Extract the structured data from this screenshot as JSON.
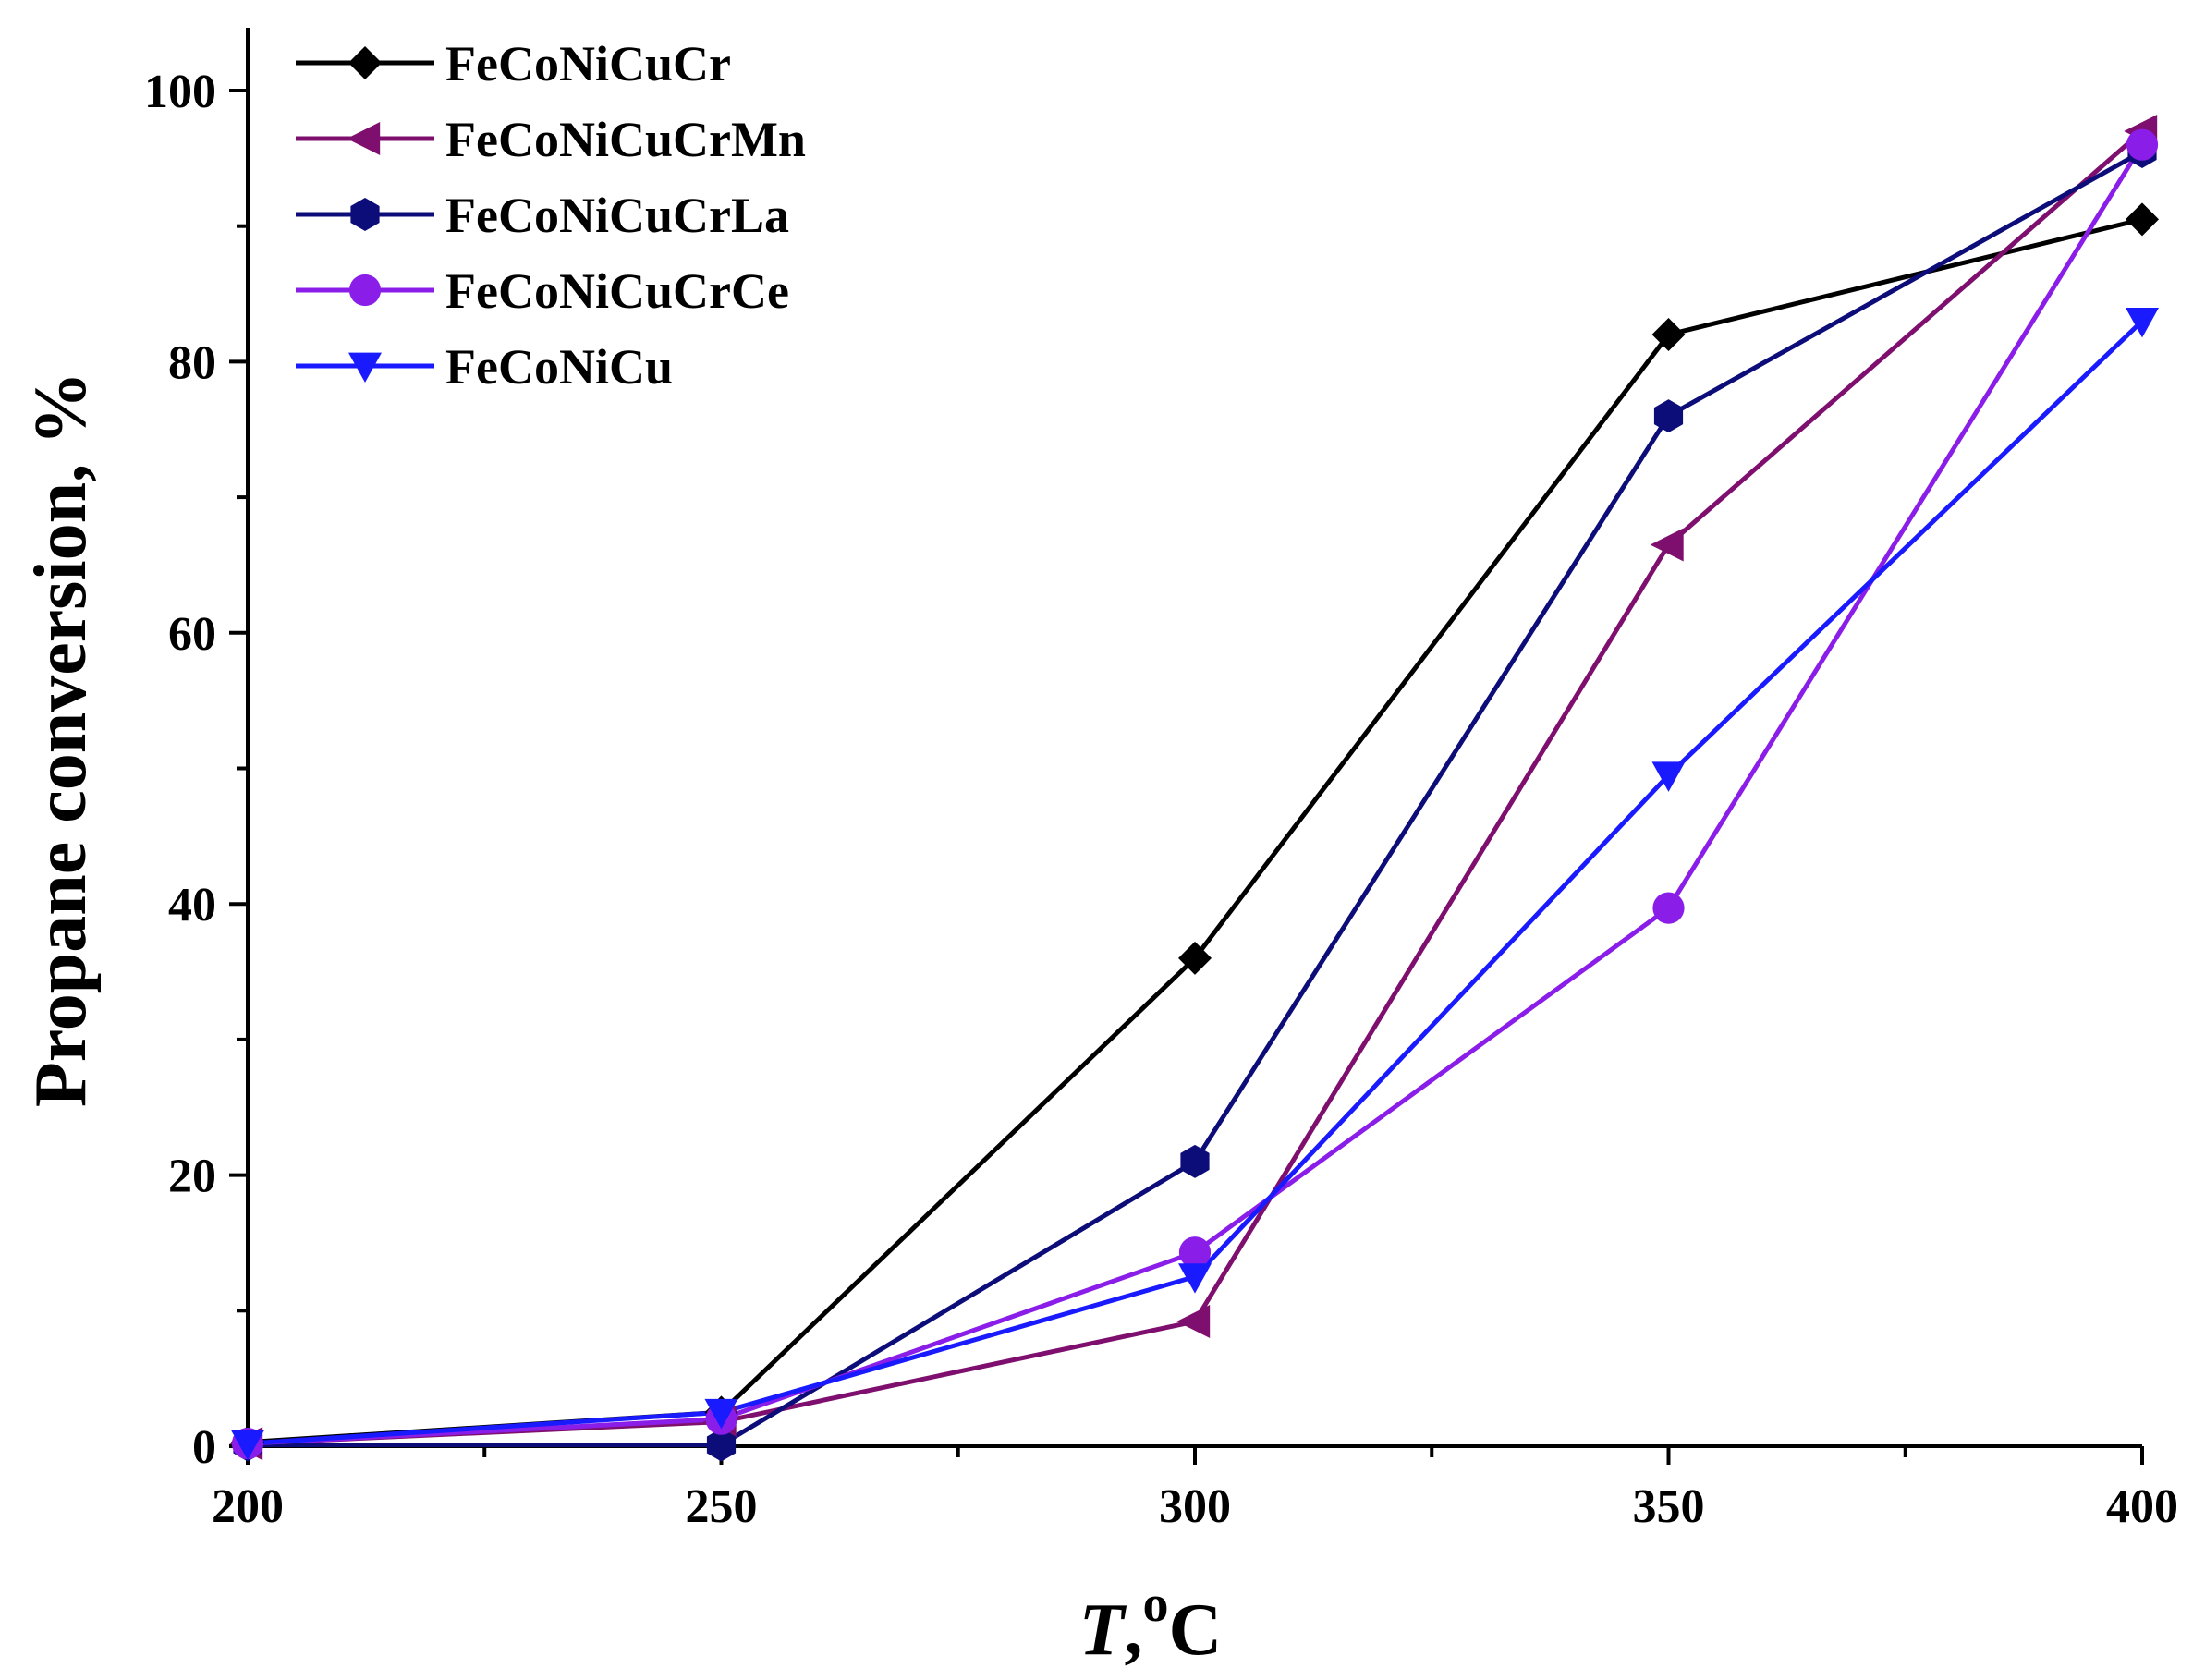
{
  "chart_data": {
    "type": "line",
    "title": "",
    "xlabel_italic": "T",
    "xlabel_sep": ",",
    "xlabel_sup": "o",
    "xlabel_unit": "C",
    "ylabel": "Propane conversion, %",
    "xlim": [
      200,
      400
    ],
    "ylim": [
      0,
      100
    ],
    "x_ticks": [
      200,
      250,
      300,
      350,
      400
    ],
    "x_tick_labels": [
      "200",
      "250",
      "300",
      "350",
      "400"
    ],
    "x_minor_ticks": [
      225,
      275,
      325,
      375
    ],
    "y_ticks": [
      0,
      20,
      40,
      60,
      80,
      100
    ],
    "y_tick_labels": [
      "0",
      "20",
      "40",
      "60",
      "80",
      "100"
    ],
    "y_minor_ticks": [
      10,
      30,
      50,
      70,
      90
    ],
    "grid": false,
    "legend_position": "top-left",
    "x": [
      200,
      250,
      300,
      350,
      400
    ],
    "series": [
      {
        "name": "FeCoNiCuCr",
        "color": "#000000",
        "marker": "diamond",
        "values": [
          0.3,
          2.5,
          36,
          82,
          90.5
        ]
      },
      {
        "name": "FeCoNiCuCrMn",
        "color": "#7f0f6e",
        "marker": "triangle-left",
        "values": [
          0.2,
          1.8,
          9.2,
          66.5,
          97
        ]
      },
      {
        "name": "FeCoNiCuCrLa",
        "color": "#0d0d7a",
        "marker": "hexagon",
        "values": [
          0.1,
          0.1,
          21,
          76,
          95.5
        ]
      },
      {
        "name": "FeCoNiCuCrCe",
        "color": "#8a1ee8",
        "marker": "circle",
        "values": [
          0.2,
          2.0,
          14.3,
          39.7,
          96
        ]
      },
      {
        "name": "FeCoNiCu",
        "color": "#1a1aff",
        "marker": "triangle-down",
        "values": [
          0.2,
          2.5,
          12.5,
          49.5,
          83
        ]
      }
    ]
  }
}
